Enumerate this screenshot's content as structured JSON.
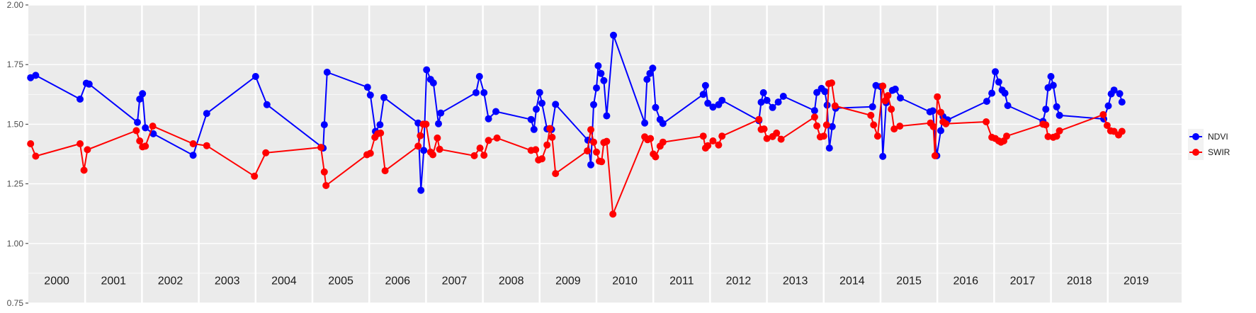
{
  "chart_data": {
    "type": "line",
    "ylim": [
      0.75,
      2.0
    ],
    "y_ticks": [
      "0.75",
      "1.00",
      "1.25",
      "1.50",
      "1.75",
      "2.00"
    ],
    "xlim": [
      2000.0,
      2020.3
    ],
    "year_labels": [
      "2000",
      "2001",
      "2002",
      "2003",
      "2004",
      "2005",
      "2006",
      "2007",
      "2008",
      "2009",
      "2010",
      "2011",
      "2012",
      "2013",
      "2014",
      "2015",
      "2016",
      "2017",
      "2018",
      "2019"
    ],
    "grid": true,
    "panel_background": "#ebebeb",
    "legend_position": "right",
    "series": [
      {
        "name": "NDVI",
        "color": "#0000ff",
        "points": [
          [
            2000.04,
            1.695
          ],
          [
            2000.13,
            1.705
          ],
          [
            2000.91,
            1.605
          ],
          [
            2001.02,
            1.672
          ],
          [
            2001.07,
            1.668
          ],
          [
            2001.92,
            1.508
          ],
          [
            2001.96,
            1.605
          ],
          [
            2002.01,
            1.628
          ],
          [
            2002.06,
            1.485
          ],
          [
            2002.2,
            1.46
          ],
          [
            2002.9,
            1.37
          ],
          [
            2003.14,
            1.545
          ],
          [
            2004.0,
            1.7
          ],
          [
            2004.2,
            1.582
          ],
          [
            2005.19,
            1.4
          ],
          [
            2005.21,
            1.498
          ],
          [
            2005.26,
            1.718
          ],
          [
            2005.97,
            1.655
          ],
          [
            2006.02,
            1.622
          ],
          [
            2006.11,
            1.47
          ],
          [
            2006.19,
            1.498
          ],
          [
            2006.26,
            1.612
          ],
          [
            2006.86,
            1.505
          ],
          [
            2006.91,
            1.223
          ],
          [
            2006.96,
            1.39
          ],
          [
            2007.01,
            1.728
          ],
          [
            2007.08,
            1.688
          ],
          [
            2007.13,
            1.673
          ],
          [
            2007.22,
            1.502
          ],
          [
            2007.26,
            1.547
          ],
          [
            2007.88,
            1.632
          ],
          [
            2007.94,
            1.7
          ],
          [
            2008.02,
            1.632
          ],
          [
            2008.1,
            1.523
          ],
          [
            2008.23,
            1.553
          ],
          [
            2008.85,
            1.52
          ],
          [
            2008.9,
            1.478
          ],
          [
            2008.94,
            1.563
          ],
          [
            2009.0,
            1.633
          ],
          [
            2009.04,
            1.588
          ],
          [
            2009.13,
            1.48
          ],
          [
            2009.21,
            1.478
          ],
          [
            2009.28,
            1.583
          ],
          [
            2009.85,
            1.433
          ],
          [
            2009.9,
            1.33
          ],
          [
            2009.95,
            1.582
          ],
          [
            2010.0,
            1.652
          ],
          [
            2010.03,
            1.745
          ],
          [
            2010.08,
            1.713
          ],
          [
            2010.13,
            1.683
          ],
          [
            2010.18,
            1.535
          ],
          [
            2010.3,
            1.873
          ],
          [
            2010.85,
            1.505
          ],
          [
            2010.89,
            1.688
          ],
          [
            2010.94,
            1.713
          ],
          [
            2010.99,
            1.735
          ],
          [
            2011.04,
            1.57
          ],
          [
            2011.12,
            1.52
          ],
          [
            2011.17,
            1.503
          ],
          [
            2011.88,
            1.625
          ],
          [
            2011.92,
            1.662
          ],
          [
            2011.96,
            1.588
          ],
          [
            2012.05,
            1.572
          ],
          [
            2012.15,
            1.582
          ],
          [
            2012.21,
            1.6
          ],
          [
            2012.86,
            1.515
          ],
          [
            2012.9,
            1.592
          ],
          [
            2012.94,
            1.632
          ],
          [
            2013.0,
            1.6
          ],
          [
            2013.1,
            1.57
          ],
          [
            2013.2,
            1.593
          ],
          [
            2013.29,
            1.617
          ],
          [
            2013.84,
            1.557
          ],
          [
            2013.88,
            1.633
          ],
          [
            2013.96,
            1.65
          ],
          [
            2014.02,
            1.637
          ],
          [
            2014.06,
            1.58
          ],
          [
            2014.1,
            1.4
          ],
          [
            2014.15,
            1.49
          ],
          [
            2014.21,
            1.567
          ],
          [
            2014.86,
            1.573
          ],
          [
            2014.92,
            1.662
          ],
          [
            2015.0,
            1.658
          ],
          [
            2015.04,
            1.365
          ],
          [
            2015.1,
            1.59
          ],
          [
            2015.21,
            1.642
          ],
          [
            2015.26,
            1.647
          ],
          [
            2015.35,
            1.61
          ],
          [
            2015.87,
            1.552
          ],
          [
            2015.92,
            1.556
          ],
          [
            2015.99,
            1.368
          ],
          [
            2016.06,
            1.473
          ],
          [
            2016.1,
            1.532
          ],
          [
            2016.18,
            1.518
          ],
          [
            2016.87,
            1.596
          ],
          [
            2016.96,
            1.63
          ],
          [
            2017.02,
            1.72
          ],
          [
            2017.08,
            1.677
          ],
          [
            2017.14,
            1.643
          ],
          [
            2017.19,
            1.63
          ],
          [
            2017.24,
            1.578
          ],
          [
            2017.86,
            1.512
          ],
          [
            2017.91,
            1.563
          ],
          [
            2017.95,
            1.653
          ],
          [
            2018.0,
            1.7
          ],
          [
            2018.04,
            1.663
          ],
          [
            2018.1,
            1.573
          ],
          [
            2018.15,
            1.537
          ],
          [
            2018.93,
            1.522
          ],
          [
            2019.01,
            1.577
          ],
          [
            2019.06,
            1.627
          ],
          [
            2019.11,
            1.643
          ],
          [
            2019.21,
            1.628
          ],
          [
            2019.25,
            1.593
          ]
        ]
      },
      {
        "name": "SWIR",
        "color": "#ff0000",
        "points": [
          [
            2000.04,
            1.418
          ],
          [
            2000.13,
            1.366
          ],
          [
            2000.91,
            1.418
          ],
          [
            2000.98,
            1.307
          ],
          [
            2001.04,
            1.393
          ],
          [
            2001.9,
            1.473
          ],
          [
            2001.96,
            1.43
          ],
          [
            2002.01,
            1.405
          ],
          [
            2002.06,
            1.408
          ],
          [
            2002.19,
            1.492
          ],
          [
            2002.9,
            1.418
          ],
          [
            2003.14,
            1.41
          ],
          [
            2003.98,
            1.282
          ],
          [
            2004.18,
            1.38
          ],
          [
            2005.15,
            1.403
          ],
          [
            2005.21,
            1.3
          ],
          [
            2005.24,
            1.243
          ],
          [
            2005.96,
            1.372
          ],
          [
            2006.02,
            1.378
          ],
          [
            2006.1,
            1.445
          ],
          [
            2006.15,
            1.46
          ],
          [
            2006.2,
            1.463
          ],
          [
            2006.28,
            1.305
          ],
          [
            2006.86,
            1.408
          ],
          [
            2006.9,
            1.452
          ],
          [
            2006.95,
            1.5
          ],
          [
            2007.0,
            1.5
          ],
          [
            2007.08,
            1.383
          ],
          [
            2007.12,
            1.372
          ],
          [
            2007.2,
            1.442
          ],
          [
            2007.24,
            1.395
          ],
          [
            2007.85,
            1.368
          ],
          [
            2007.95,
            1.4
          ],
          [
            2008.02,
            1.37
          ],
          [
            2008.1,
            1.432
          ],
          [
            2008.25,
            1.442
          ],
          [
            2008.85,
            1.39
          ],
          [
            2008.93,
            1.393
          ],
          [
            2008.98,
            1.35
          ],
          [
            2009.04,
            1.355
          ],
          [
            2009.13,
            1.413
          ],
          [
            2009.18,
            1.482
          ],
          [
            2009.22,
            1.445
          ],
          [
            2009.28,
            1.293
          ],
          [
            2009.84,
            1.388
          ],
          [
            2009.9,
            1.477
          ],
          [
            2009.95,
            1.425
          ],
          [
            2010.0,
            1.383
          ],
          [
            2010.05,
            1.345
          ],
          [
            2010.09,
            1.343
          ],
          [
            2010.13,
            1.423
          ],
          [
            2010.18,
            1.428
          ],
          [
            2010.29,
            1.123
          ],
          [
            2010.85,
            1.447
          ],
          [
            2010.9,
            1.435
          ],
          [
            2010.95,
            1.44
          ],
          [
            2011.0,
            1.375
          ],
          [
            2011.04,
            1.363
          ],
          [
            2011.12,
            1.408
          ],
          [
            2011.17,
            1.425
          ],
          [
            2011.88,
            1.45
          ],
          [
            2011.92,
            1.4
          ],
          [
            2011.96,
            1.41
          ],
          [
            2012.05,
            1.43
          ],
          [
            2012.15,
            1.413
          ],
          [
            2012.21,
            1.45
          ],
          [
            2012.86,
            1.52
          ],
          [
            2012.9,
            1.478
          ],
          [
            2012.95,
            1.48
          ],
          [
            2013.0,
            1.44
          ],
          [
            2013.1,
            1.448
          ],
          [
            2013.17,
            1.463
          ],
          [
            2013.25,
            1.437
          ],
          [
            2013.84,
            1.53
          ],
          [
            2013.88,
            1.493
          ],
          [
            2013.94,
            1.447
          ],
          [
            2014.0,
            1.45
          ],
          [
            2014.05,
            1.497
          ],
          [
            2014.09,
            1.67
          ],
          [
            2014.14,
            1.673
          ],
          [
            2014.2,
            1.577
          ],
          [
            2014.83,
            1.537
          ],
          [
            2014.88,
            1.497
          ],
          [
            2014.95,
            1.45
          ],
          [
            2015.04,
            1.66
          ],
          [
            2015.08,
            1.598
          ],
          [
            2015.13,
            1.62
          ],
          [
            2015.19,
            1.563
          ],
          [
            2015.24,
            1.48
          ],
          [
            2015.34,
            1.492
          ],
          [
            2015.88,
            1.505
          ],
          [
            2015.93,
            1.49
          ],
          [
            2015.96,
            1.368
          ],
          [
            2016.0,
            1.615
          ],
          [
            2016.06,
            1.55
          ],
          [
            2016.1,
            1.51
          ],
          [
            2016.15,
            1.502
          ],
          [
            2016.86,
            1.51
          ],
          [
            2016.96,
            1.445
          ],
          [
            2017.02,
            1.44
          ],
          [
            2017.08,
            1.43
          ],
          [
            2017.12,
            1.425
          ],
          [
            2017.17,
            1.43
          ],
          [
            2017.22,
            1.45
          ],
          [
            2017.86,
            1.5
          ],
          [
            2017.91,
            1.497
          ],
          [
            2017.95,
            1.448
          ],
          [
            2018.04,
            1.445
          ],
          [
            2018.1,
            1.45
          ],
          [
            2018.15,
            1.472
          ],
          [
            2018.92,
            1.54
          ],
          [
            2018.99,
            1.495
          ],
          [
            2019.05,
            1.472
          ],
          [
            2019.11,
            1.47
          ],
          [
            2019.19,
            1.455
          ],
          [
            2019.25,
            1.47
          ]
        ]
      }
    ]
  }
}
